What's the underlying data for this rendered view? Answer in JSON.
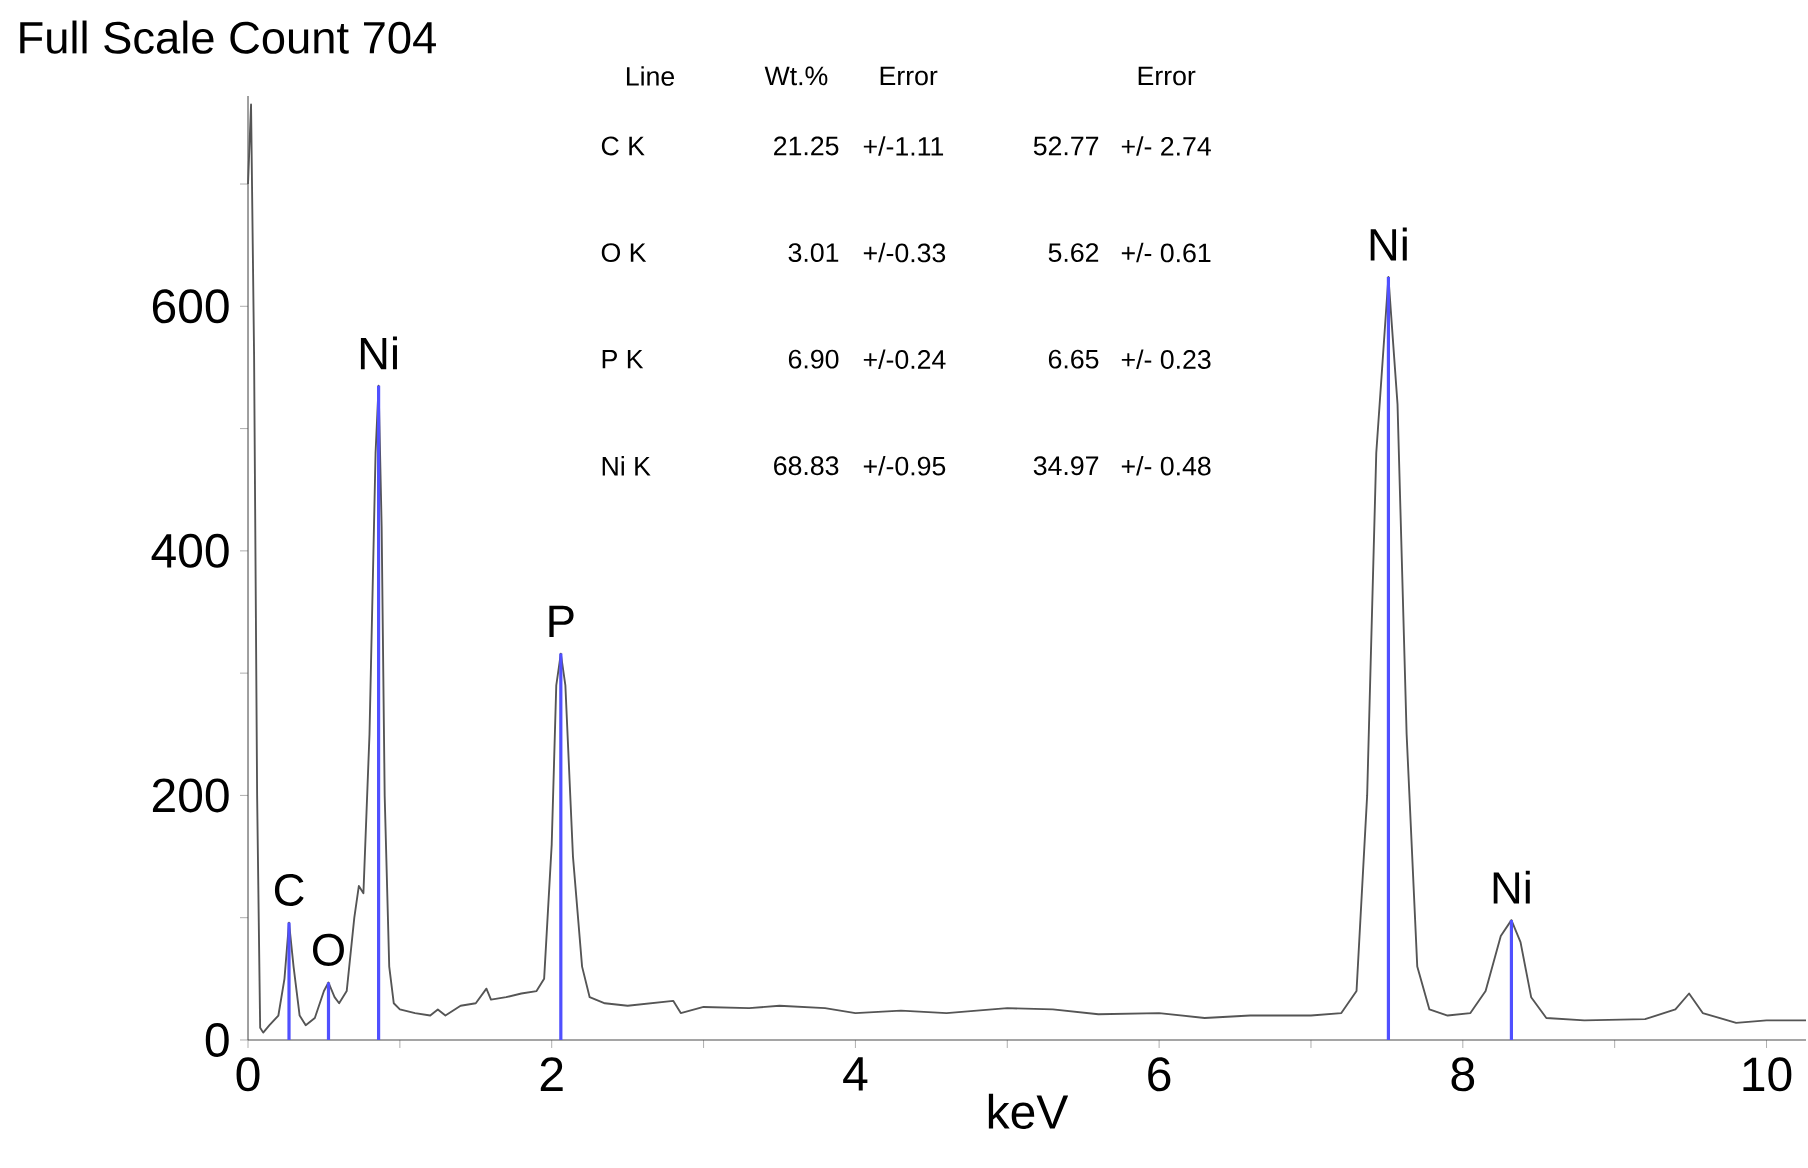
{
  "chart_data": {
    "type": "line",
    "title": "Full Scale Count 704",
    "xlabel": "keV",
    "xlim": [
      0,
      10.26
    ],
    "ylim": [
      0,
      772
    ],
    "xticks": [
      0,
      {
        "value": 1,
        "label": null
      },
      2,
      {
        "value": 3,
        "label": null
      },
      4,
      {
        "value": 5,
        "label": null
      },
      6,
      {
        "value": 7,
        "label": null
      },
      8,
      {
        "value": 9,
        "label": null
      },
      10
    ],
    "yticks": [
      0,
      {
        "value": 100,
        "label": null
      },
      200,
      {
        "value": 300,
        "label": null
      },
      400,
      {
        "value": 500,
        "label": null
      },
      600,
      {
        "value": 700,
        "label": null
      }
    ],
    "series": [
      {
        "color": "#555555",
        "x": [
          0.0,
          0.02,
          0.04,
          0.06,
          0.08,
          0.1,
          0.14,
          0.2,
          0.24,
          0.27,
          0.3,
          0.34,
          0.38,
          0.44,
          0.5,
          0.53,
          0.57,
          0.6,
          0.65,
          0.7,
          0.73,
          0.76,
          0.8,
          0.84,
          0.86,
          0.88,
          0.9,
          0.93,
          0.96,
          1.0,
          1.1,
          1.2,
          1.25,
          1.3,
          1.4,
          1.5,
          1.57,
          1.6,
          1.7,
          1.8,
          1.9,
          1.95,
          2.0,
          2.03,
          2.06,
          2.09,
          2.14,
          2.2,
          2.25,
          2.35,
          2.5,
          2.8,
          2.85,
          3.0,
          3.3,
          3.5,
          3.8,
          4.0,
          4.3,
          4.6,
          5.0,
          5.3,
          5.6,
          6.0,
          6.3,
          6.6,
          7.0,
          7.2,
          7.3,
          7.37,
          7.43,
          7.51,
          7.57,
          7.63,
          7.7,
          7.78,
          7.9,
          8.05,
          8.15,
          8.25,
          8.32,
          8.38,
          8.45,
          8.55,
          8.8,
          9.2,
          9.4,
          9.49,
          9.58,
          9.8,
          10.0,
          10.26
        ],
        "values": [
          700,
          765,
          560,
          200,
          10,
          6,
          12,
          20,
          50,
          96,
          60,
          20,
          12,
          18,
          40,
          47,
          35,
          30,
          40,
          100,
          126,
          120,
          250,
          480,
          535,
          420,
          200,
          60,
          30,
          25,
          22,
          20,
          25,
          20,
          28,
          30,
          42,
          33,
          35,
          38,
          40,
          50,
          160,
          290,
          316,
          290,
          150,
          60,
          35,
          30,
          28,
          32,
          22,
          27,
          26,
          28,
          26,
          22,
          24,
          22,
          26,
          25,
          21,
          22,
          18,
          20,
          20,
          22,
          40,
          200,
          480,
          624,
          520,
          250,
          60,
          25,
          20,
          22,
          40,
          85,
          98,
          80,
          35,
          18,
          16,
          17,
          25,
          38,
          22,
          14,
          16,
          16
        ]
      },
      {
        "type": "bar",
        "color": "#5050ff",
        "x": [
          0.27,
          0.53,
          0.86,
          2.06,
          7.51,
          8.32
        ],
        "values": [
          96,
          47,
          535,
          316,
          624,
          98
        ]
      }
    ],
    "annotations": [
      "Line",
      "Wt.%",
      "Error",
      "Error",
      "C K",
      "21.25",
      "+/-1.11",
      "52.77",
      "+/- 2.74",
      "O K",
      "3.01",
      "+/-0.33",
      "5.62",
      "+/- 0.61",
      "P K",
      "6.90",
      "+/-0.24",
      "6.65",
      "+/- 0.23",
      "Ni K",
      "68.83",
      "+/-0.95",
      "34.97",
      "+/- 0.48",
      {
        "text": "C",
        "x": 0.27,
        "y": 96
      },
      {
        "text": "O",
        "x": 0.53,
        "y": 47
      },
      {
        "text": "Ni",
        "x": 0.86,
        "y": 535
      },
      {
        "text": "P",
        "x": 2.06,
        "y": 316
      },
      {
        "text": "Ni",
        "x": 7.51,
        "y": 624
      },
      {
        "text": "Ni",
        "x": 8.32,
        "y": 98
      }
    ]
  }
}
